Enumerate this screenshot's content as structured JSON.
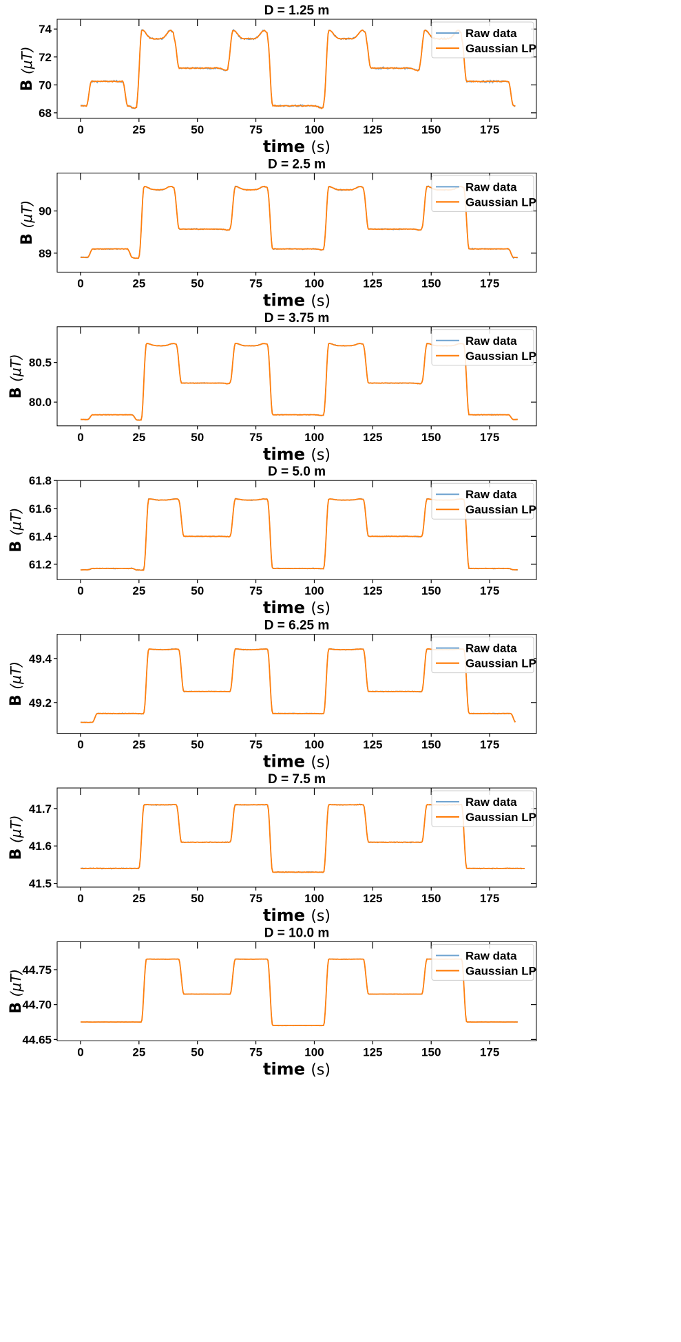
{
  "colors": {
    "raw": "#6fa3d0",
    "lp": "#ff7f0e",
    "axis": "#000000",
    "legend_border": "#cccccc"
  },
  "chart_data": [
    {
      "type": "line",
      "title": "D = 1.25 m",
      "xlabel": "time",
      "xunit": "(s)",
      "ylabel": "B",
      "yunit": "(μT)",
      "xlim": [
        -10,
        195
      ],
      "ylim": [
        67.6,
        74.7
      ],
      "xticks": [
        "0",
        "25",
        "50",
        "75",
        "100",
        "125",
        "150",
        "175"
      ],
      "xtick_values": [
        0,
        25,
        50,
        75,
        100,
        125,
        150,
        175
      ],
      "yticks": [
        "68",
        "70",
        "72",
        "74"
      ],
      "ytick_values": [
        68,
        70,
        72,
        74
      ],
      "xmax": 186,
      "noise": 0.02,
      "lp_noise": 0.01,
      "overshoot": 0.7,
      "levels": [
        68.5,
        70.25,
        73.3,
        71.2
      ],
      "sequence": [
        [
          0,
          2.5,
          0
        ],
        [
          2.5,
          18,
          1
        ],
        [
          18,
          24,
          0
        ],
        [
          24,
          40,
          2
        ],
        [
          40,
          63,
          3
        ],
        [
          63,
          80,
          2
        ],
        [
          80,
          104,
          0
        ],
        [
          104,
          122,
          2
        ],
        [
          122,
          145,
          3
        ],
        [
          145,
          163,
          2
        ],
        [
          163,
          183,
          1
        ],
        [
          183,
          186,
          0
        ]
      ],
      "legend": [
        "Raw data",
        "Gaussian LP"
      ]
    },
    {
      "type": "line",
      "title": "D = 2.5 m",
      "xlabel": "time",
      "xunit": "(s)",
      "ylabel": "B",
      "yunit": "(μT)",
      "xlim": [
        -10,
        195
      ],
      "ylim": [
        88.55,
        90.9
      ],
      "xticks": [
        "0",
        "25",
        "50",
        "75",
        "100",
        "125",
        "150",
        "175"
      ],
      "xtick_values": [
        0,
        25,
        50,
        75,
        100,
        125,
        150,
        175
      ],
      "yticks": [
        "89",
        "90"
      ],
      "ytick_values": [
        89,
        90
      ],
      "xmax": 187,
      "noise": 0.012,
      "lp_noise": 0.006,
      "overshoot": 0.28,
      "levels": [
        88.9,
        89.1,
        90.5,
        89.57
      ],
      "sequence": [
        [
          0,
          3,
          0
        ],
        [
          3,
          20,
          1
        ],
        [
          20,
          25,
          0
        ],
        [
          25,
          40,
          2
        ],
        [
          40,
          64,
          3
        ],
        [
          64,
          80,
          2
        ],
        [
          80,
          104,
          1
        ],
        [
          104,
          121,
          2
        ],
        [
          121,
          146,
          3
        ],
        [
          146,
          164,
          2
        ],
        [
          164,
          183,
          1
        ],
        [
          183,
          187,
          0
        ]
      ],
      "legend": [
        "Raw data",
        "Gaussian LP"
      ]
    },
    {
      "type": "line",
      "title": "D = 3.75 m",
      "xlabel": "time",
      "xunit": "(s)",
      "ylabel": "B",
      "yunit": "(μT)",
      "xlim": [
        -10,
        195
      ],
      "ylim": [
        79.7,
        80.95
      ],
      "xticks": [
        "0",
        "25",
        "50",
        "75",
        "100",
        "125",
        "150",
        "175"
      ],
      "xtick_values": [
        0,
        25,
        50,
        75,
        100,
        125,
        150,
        175
      ],
      "yticks": [
        "80.0",
        "80.5"
      ],
      "ytick_values": [
        80.0,
        80.5
      ],
      "xmax": 187,
      "noise": 0.008,
      "lp_noise": 0.004,
      "overshoot": 0.17,
      "levels": [
        79.78,
        79.84,
        80.71,
        80.24
      ],
      "sequence": [
        [
          0,
          3,
          0
        ],
        [
          3,
          22,
          1
        ],
        [
          22,
          26,
          0
        ],
        [
          26,
          41,
          2
        ],
        [
          41,
          64,
          3
        ],
        [
          64,
          80,
          2
        ],
        [
          80,
          104,
          1
        ],
        [
          104,
          121,
          2
        ],
        [
          121,
          146,
          3
        ],
        [
          146,
          164,
          2
        ],
        [
          164,
          183,
          1
        ],
        [
          183,
          187,
          0
        ]
      ],
      "legend": [
        "Raw data",
        "Gaussian LP"
      ]
    },
    {
      "type": "line",
      "title": "D = 5.0 m",
      "xlabel": "time",
      "xunit": "(s)",
      "ylabel": "B",
      "yunit": "(μT)",
      "xlim": [
        -10,
        195
      ],
      "ylim": [
        61.09,
        61.8
      ],
      "xticks": [
        "0",
        "25",
        "50",
        "75",
        "100",
        "125",
        "150",
        "175"
      ],
      "xtick_values": [
        0,
        25,
        50,
        75,
        100,
        125,
        150,
        175
      ],
      "yticks": [
        "61.2",
        "61.4",
        "61.6",
        "61.8"
      ],
      "ytick_values": [
        61.2,
        61.4,
        61.6,
        61.8
      ],
      "xmax": 187,
      "noise": 0.008,
      "lp_noise": 0.004,
      "overshoot": 0.09,
      "levels": [
        61.16,
        61.17,
        61.66,
        61.4
      ],
      "sequence": [
        [
          0,
          3,
          0
        ],
        [
          3,
          22,
          1
        ],
        [
          22,
          27,
          0
        ],
        [
          27,
          42,
          2
        ],
        [
          42,
          64,
          3
        ],
        [
          64,
          80,
          2
        ],
        [
          80,
          104,
          1
        ],
        [
          104,
          121,
          2
        ],
        [
          121,
          146,
          3
        ],
        [
          146,
          164,
          2
        ],
        [
          164,
          183,
          1
        ],
        [
          183,
          187,
          0
        ]
      ],
      "legend": [
        "Raw data",
        "Gaussian LP"
      ]
    },
    {
      "type": "line",
      "title": "D = 6.25 m",
      "xlabel": "time",
      "xunit": "(s)",
      "ylabel": "B",
      "yunit": "(μT)",
      "xlim": [
        -10,
        195
      ],
      "ylim": [
        49.06,
        49.51
      ],
      "xticks": [
        "0",
        "25",
        "50",
        "75",
        "100",
        "125",
        "150",
        "175"
      ],
      "xtick_values": [
        0,
        25,
        50,
        75,
        100,
        125,
        150,
        175
      ],
      "yticks": [
        "49.2",
        "49.4"
      ],
      "ytick_values": [
        49.2,
        49.4
      ],
      "xmax": 186,
      "noise": 0.008,
      "lp_noise": 0.004,
      "overshoot": 0.05,
      "levels": [
        49.11,
        49.15,
        49.44,
        49.25
      ],
      "sequence": [
        [
          0,
          5,
          0
        ],
        [
          5,
          22,
          1
        ],
        [
          22,
          27,
          1
        ],
        [
          27,
          42,
          2
        ],
        [
          42,
          64,
          3
        ],
        [
          64,
          80,
          2
        ],
        [
          80,
          104,
          1
        ],
        [
          104,
          121,
          2
        ],
        [
          121,
          146,
          3
        ],
        [
          146,
          164,
          2
        ],
        [
          164,
          184,
          1
        ],
        [
          184,
          186,
          0
        ]
      ],
      "legend": [
        "Raw data",
        "Gaussian LP"
      ]
    },
    {
      "type": "line",
      "title": "D = 7.5 m",
      "xlabel": "time",
      "xunit": "(s)",
      "ylabel": "B",
      "yunit": "(μT)",
      "xlim": [
        -10,
        195
      ],
      "ylim": [
        41.49,
        41.755
      ],
      "xticks": [
        "0",
        "25",
        "50",
        "75",
        "100",
        "125",
        "150",
        "175"
      ],
      "xtick_values": [
        0,
        25,
        50,
        75,
        100,
        125,
        150,
        175
      ],
      "yticks": [
        "41.5",
        "41.6",
        "41.7"
      ],
      "ytick_values": [
        41.5,
        41.6,
        41.7
      ],
      "xmax": 190,
      "noise": 0.009,
      "lp_noise": 0.005,
      "overshoot": 0.015,
      "levels": [
        41.53,
        41.54,
        41.71,
        41.61
      ],
      "sequence": [
        [
          0,
          25,
          1
        ],
        [
          25,
          41,
          2
        ],
        [
          41,
          64,
          3
        ],
        [
          64,
          80,
          2
        ],
        [
          80,
          104,
          0
        ],
        [
          104,
          121,
          2
        ],
        [
          121,
          146,
          3
        ],
        [
          146,
          163,
          2
        ],
        [
          163,
          190,
          1
        ]
      ],
      "legend": [
        "Raw data",
        "Gaussian LP"
      ]
    },
    {
      "type": "line",
      "title": "D = 10.0 m",
      "xlabel": "time",
      "xunit": "(s)",
      "ylabel": "B",
      "yunit": "(μT)",
      "xlim": [
        -10,
        195
      ],
      "ylim": [
        44.648,
        44.79
      ],
      "xticks": [
        "0",
        "25",
        "50",
        "75",
        "100",
        "125",
        "150",
        "175"
      ],
      "xtick_values": [
        0,
        25,
        50,
        75,
        100,
        125,
        150,
        175
      ],
      "yticks": [
        "44.65",
        "44.70",
        "44.75"
      ],
      "ytick_values": [
        44.65,
        44.7,
        44.75
      ],
      "xmax": 187,
      "noise": 0.004,
      "lp_noise": 0.002,
      "overshoot": 0.01,
      "levels": [
        44.67,
        44.675,
        44.765,
        44.715
      ],
      "sequence": [
        [
          0,
          26,
          1
        ],
        [
          26,
          42,
          2
        ],
        [
          42,
          64,
          3
        ],
        [
          64,
          80,
          2
        ],
        [
          80,
          104,
          0
        ],
        [
          104,
          121,
          2
        ],
        [
          121,
          146,
          3
        ],
        [
          146,
          163,
          2
        ],
        [
          163,
          187,
          1
        ]
      ],
      "legend": [
        "Raw data",
        "Gaussian LP"
      ]
    }
  ]
}
